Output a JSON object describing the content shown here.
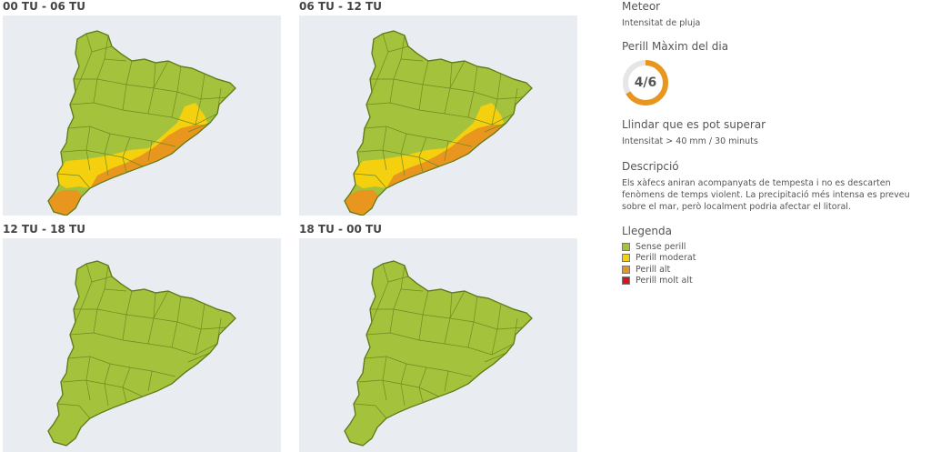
{
  "panels": [
    {
      "title": "00 TU - 06 TU",
      "has_warning": true
    },
    {
      "title": "06 TU - 12 TU",
      "has_warning": true
    },
    {
      "title": "12 TU - 18 TU",
      "has_warning": false
    },
    {
      "title": "18 TU - 00 TU",
      "has_warning": false
    }
  ],
  "sidebar": {
    "meteor_heading": "Meteor",
    "meteor_value": "Intensitat de pluja",
    "max_heading": "Perill Màxim del dia",
    "max_level": 4,
    "max_scale": 6,
    "max_label": "4/6",
    "threshold_heading": "Llindar que es pot superar",
    "threshold_value": "Intensitat > 40 mm / 30 minuts",
    "description_heading": "Descripció",
    "description_text": "Els xàfecs aniran acompanyats de tempesta i no es descarten fenòmens de temps violent. La precipitació més intensa es preveu sobre el mar, però localment podria afectar el litoral.",
    "legend_heading": "Llegenda",
    "legend": [
      {
        "label": "Sense perill",
        "color": "#a4c23b"
      },
      {
        "label": "Perill moderat",
        "color": "#f5d00f"
      },
      {
        "label": "Perill alt",
        "color": "#e8961e"
      },
      {
        "label": "Perill molt alt",
        "color": "#d7141e"
      }
    ]
  }
}
